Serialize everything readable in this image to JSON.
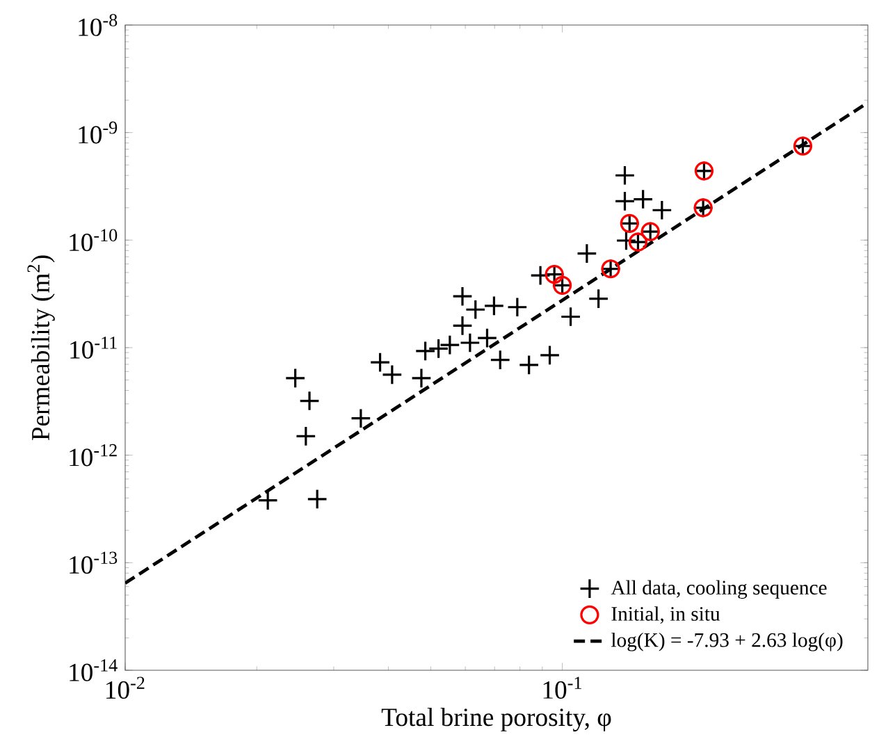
{
  "chart_data": {
    "type": "scatter",
    "xlabel": "Total brine porosity, φ",
    "ylabel": "Permeability (m$^{2}$)",
    "log": "xy",
    "grid": false,
    "legend": "bottom right",
    "xlim": [
      0.01,
      0.5
    ],
    "ylim": [
      1e-14,
      1e-08
    ],
    "xticks": [
      {
        "value": 0.01,
        "label": "10$^{-2}$"
      },
      {
        "value": 0.1,
        "label": "10$^{-1}$"
      }
    ],
    "yticks": [
      {
        "value": 1e-14,
        "label": "10$^{-14}$"
      },
      {
        "value": 1e-13,
        "label": "10$^{-13}$"
      },
      {
        "value": 1e-12,
        "label": "10$^{-12}$"
      },
      {
        "value": 1e-11,
        "label": "10$^{-11}$"
      },
      {
        "value": 1e-10,
        "label": "10$^{-10}$"
      },
      {
        "value": 1e-09,
        "label": "10$^{-9}$"
      },
      {
        "value": 1e-08,
        "label": "10$^{-8}$"
      }
    ],
    "series": [
      {
        "name": "All data, cooling sequence",
        "marker": "cross",
        "color": "#000000",
        "x": [
          0.0212,
          0.0275,
          0.0245,
          0.0264,
          0.0259,
          0.0346,
          0.0383,
          0.0408,
          0.0476,
          0.0486,
          0.0521,
          0.0553,
          0.0591,
          0.0591,
          0.0615,
          0.0633,
          0.0698,
          0.0673,
          0.0721,
          0.0789,
          0.0839,
          0.0936,
          0.0891,
          0.0959,
          0.1,
          0.1138,
          0.121,
          0.1045,
          0.129,
          0.139,
          0.139,
          0.153,
          0.169,
          0.1425,
          0.14,
          0.149,
          0.159,
          0.211,
          0.21,
          0.355
        ],
        "values": [
          3.8e-13,
          3.9e-13,
          5.2e-12,
          3.2e-12,
          1.5e-12,
          2.2e-12,
          7.3e-12,
          5.6e-12,
          5.2e-12,
          9.3e-12,
          9.8e-12,
          1.06e-11,
          3e-11,
          1.6e-11,
          1.11e-11,
          2.26e-11,
          2.45e-11,
          1.23e-11,
          7.7e-12,
          2.38e-11,
          6.9e-12,
          8.5e-12,
          4.7e-11,
          4.8e-11,
          3.8e-11,
          7.5e-11,
          2.85e-11,
          1.94e-11,
          5.4e-11,
          4e-10,
          2.3e-10,
          2.4e-10,
          1.9e-10,
          1.43e-10,
          9.9e-11,
          9.6e-11,
          1.2e-10,
          4.4e-10,
          2e-10,
          7.5e-10
        ]
      },
      {
        "name": "Initial, in situ",
        "marker": "circle",
        "color": "#ff0000",
        "x": [
          0.0959,
          0.1,
          0.129,
          0.1425,
          0.149,
          0.159,
          0.211,
          0.21,
          0.355
        ],
        "values": [
          4.8e-11,
          3.8e-11,
          5.4e-11,
          1.43e-10,
          9.6e-11,
          1.2e-10,
          4.4e-10,
          2e-10,
          7.5e-10
        ]
      },
      {
        "name": "log(K) = -7.93 + 2.63 log(φ)",
        "type": "line",
        "line_style": "dashed",
        "marker": "none",
        "color": "#000000",
        "x": [
          0.01,
          0.5
        ],
        "values": [
          6.46e-14,
          1.9e-09
        ]
      }
    ]
  }
}
